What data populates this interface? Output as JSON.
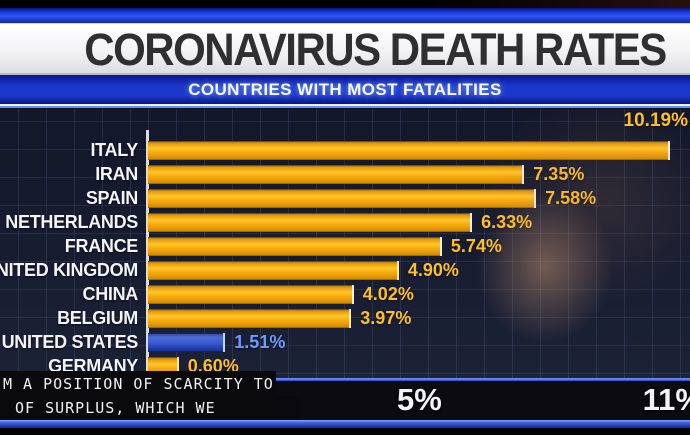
{
  "header": {
    "title": "CORONAVIRUS DEATH RATES",
    "subtitle": "COUNTRIES WITH MOST FATALITIES"
  },
  "chart_data": {
    "type": "bar",
    "orientation": "horizontal",
    "title": "CORONAVIRUS DEATH RATES",
    "subtitle": "COUNTRIES WITH MOST FATALITIES",
    "categories": [
      "ITALY",
      "IRAN",
      "SPAIN",
      "NETHERLANDS",
      "FRANCE",
      "UNITED KINGDOM",
      "CHINA",
      "BELGIUM",
      "UNITED STATES",
      "GERMANY"
    ],
    "values": [
      10.19,
      7.35,
      7.58,
      6.33,
      5.74,
      4.9,
      4.02,
      3.97,
      1.51,
      0.6
    ],
    "value_labels": [
      "10.19%",
      "7.35%",
      "7.58%",
      "6.33%",
      "5.74%",
      "4.90%",
      "4.02%",
      "3.97%",
      "1.51%",
      "0.60%"
    ],
    "highlight_index": 8,
    "xlabel": "",
    "ylabel": "",
    "xlim": [
      0,
      11
    ],
    "x_ticks_visible": [
      "5%",
      "11%"
    ],
    "grid": true,
    "legend": "none",
    "colors": {
      "bar_default": "#f7ae10",
      "bar_highlight": "#3c5cd0",
      "value_text_default": "#ffc024",
      "value_text_highlight": "#6f9bff",
      "chart_background": "#161b2e",
      "band_blue": "#1c38cc",
      "title_text": "#2f2f31"
    }
  },
  "bottom": {
    "axis_label_mid": "5%",
    "axis_label_right": "11%",
    "caption_line1": "M A POSITION OF SCARCITY TO",
    "caption_line2": "OF SURPLUS, WHICH WE"
  }
}
